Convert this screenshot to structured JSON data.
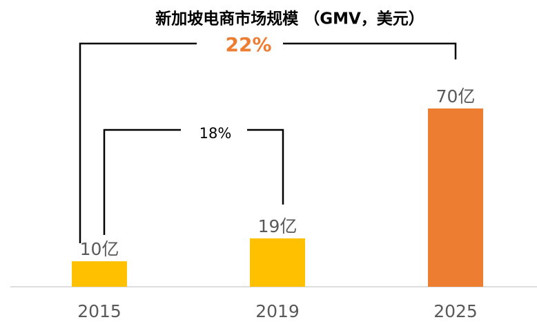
{
  "chart_data": {
    "type": "bar",
    "title": "新加坡电商市场规模 （GMV，美元）",
    "categories": [
      "2015",
      "2019",
      "2025"
    ],
    "values": [
      10,
      19,
      70
    ],
    "value_labels": [
      "10亿",
      "19亿",
      "70亿"
    ],
    "colors": [
      "#FFC000",
      "#FFC000",
      "#ED7D31"
    ],
    "annotations": [
      {
        "text": "22%",
        "color": "#ED7D31"
      },
      {
        "text": "18%"
      }
    ]
  }
}
